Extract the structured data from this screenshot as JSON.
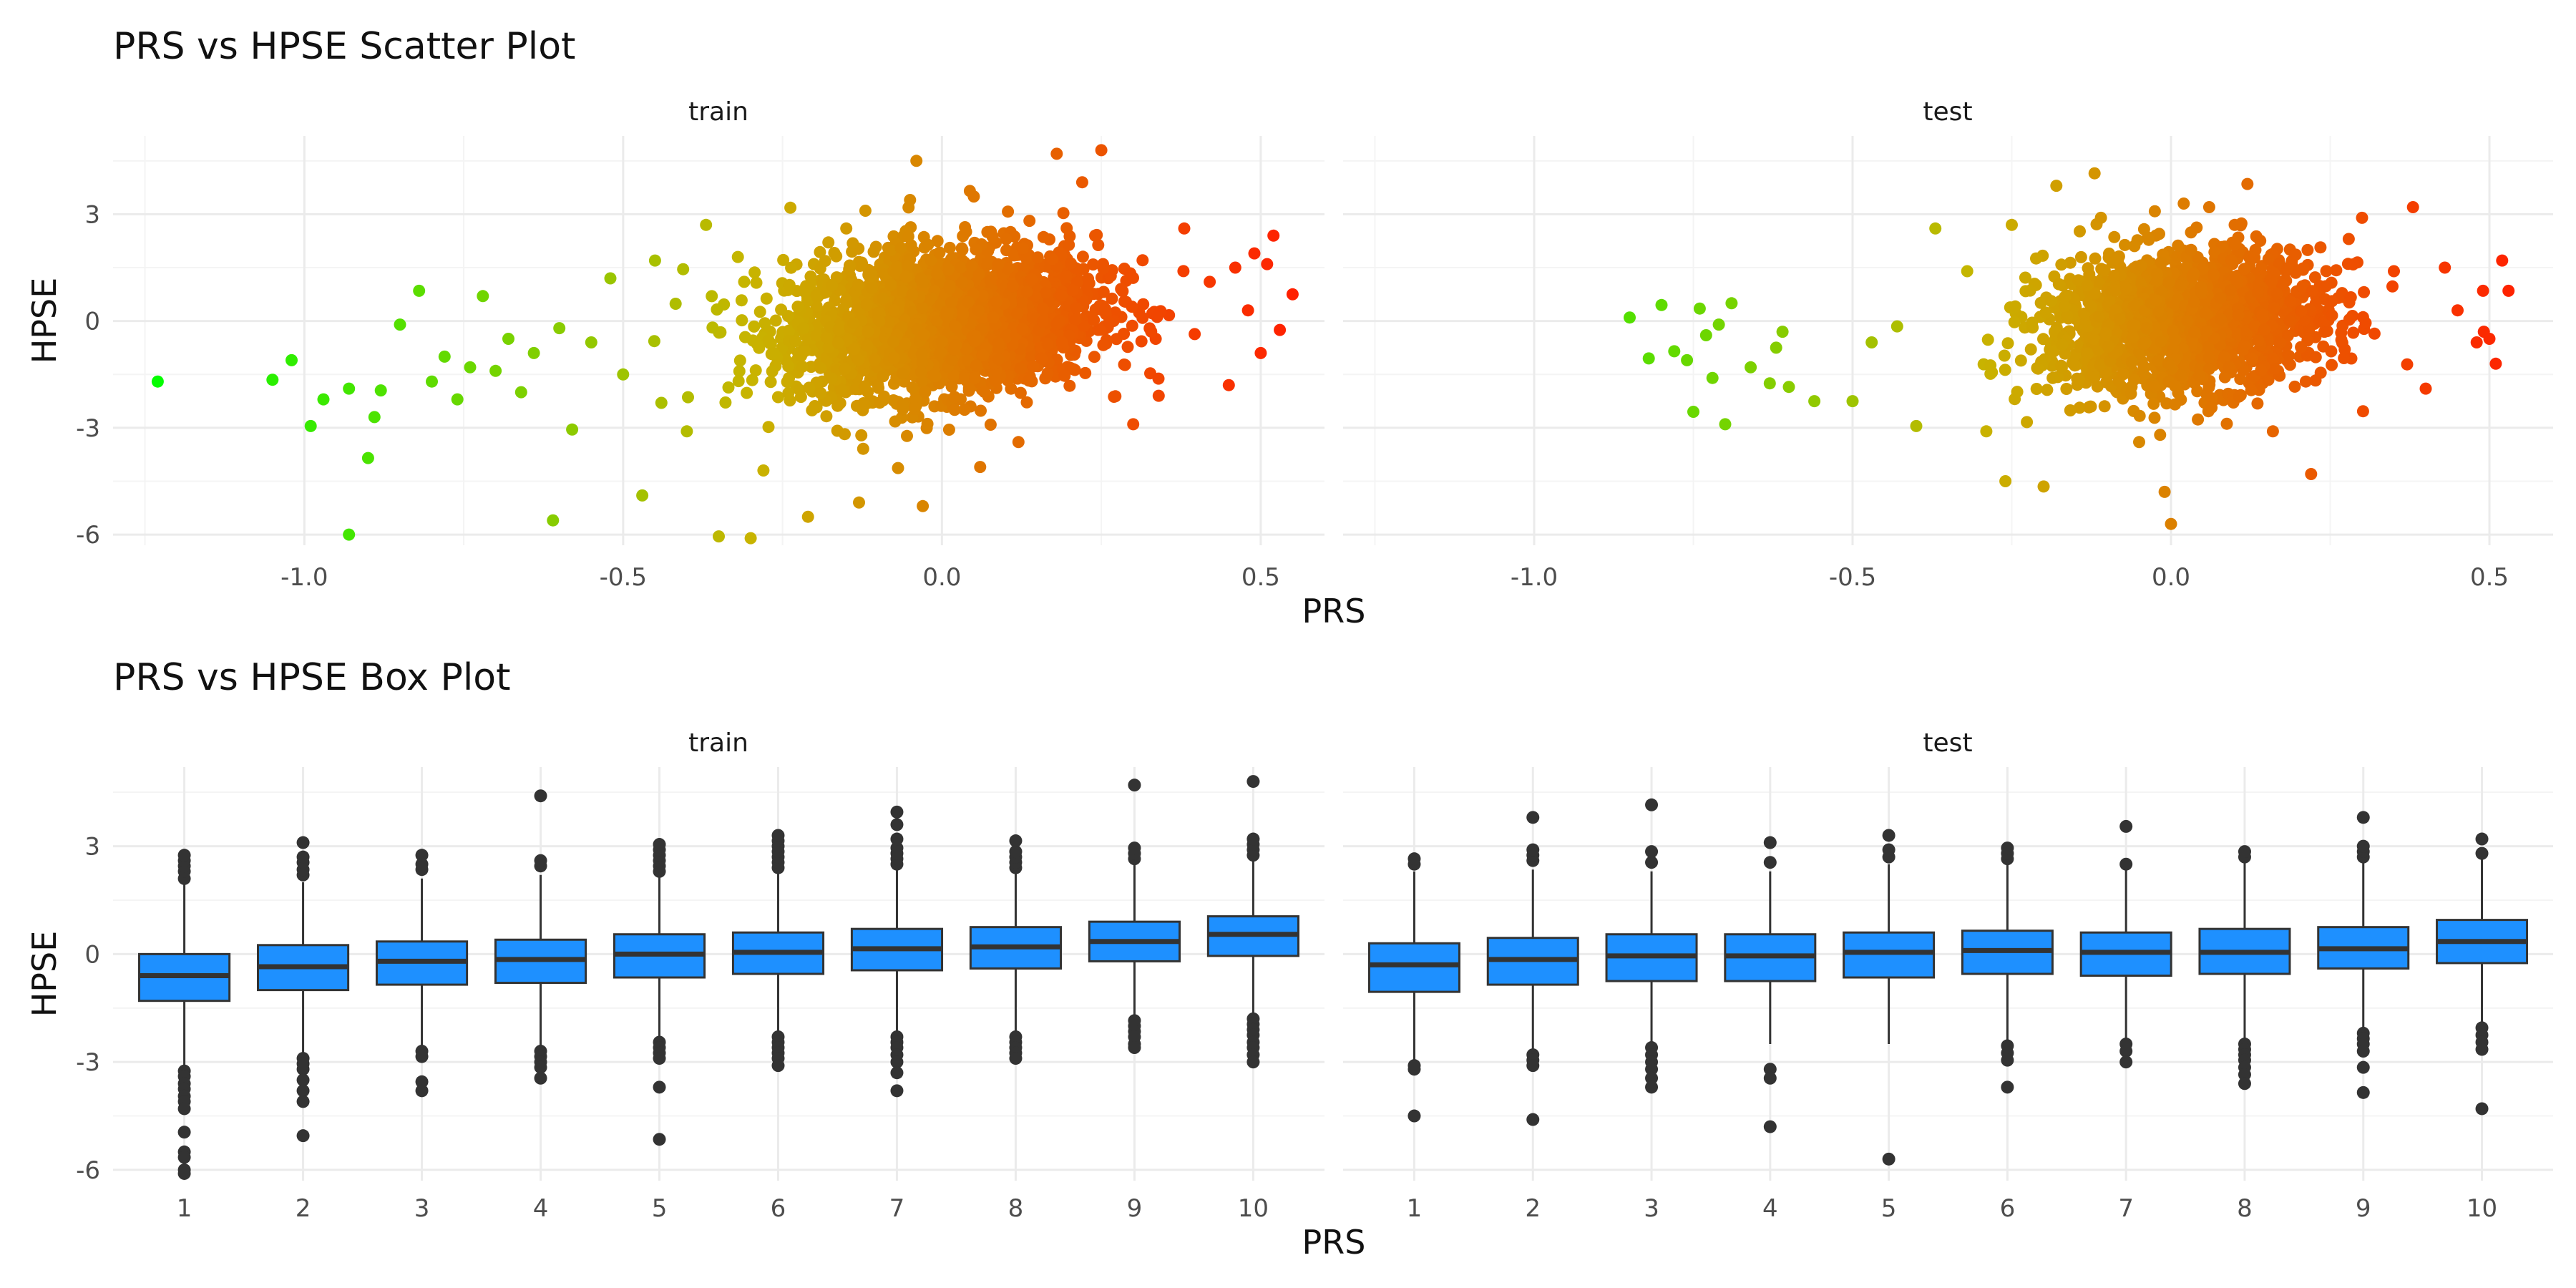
{
  "colors": {
    "background": "#ffffff",
    "grid_major": "#ebebeb",
    "grid_minor": "#f4f4f4",
    "box_fill": "#1e90ff",
    "box_line": "#333333",
    "outlier": "#333333",
    "scatter_low": "#00ff00",
    "scatter_mid": "#c8b400",
    "scatter_high": "#ff2000"
  },
  "chart_data": [
    {
      "type": "scatter",
      "title": "PRS vs HPSE Scatter Plot",
      "xlabel": "PRS",
      "ylabel": "HPSE",
      "xlim": [
        -1.3,
        0.6
      ],
      "ylim": [
        -6.3,
        5.2
      ],
      "x_ticks": [
        -1.0,
        -0.5,
        0.0,
        0.5
      ],
      "x_tick_labels": [
        "-1.0",
        "-0.5",
        "0.0",
        "0.5"
      ],
      "y_ticks": [
        -6,
        -3,
        0,
        3
      ],
      "y_tick_labels": [
        "-6",
        "-3",
        "0",
        "3"
      ],
      "grid": true,
      "legend": "none",
      "color_mapping": "color encodes PRS (green = low, red = high)",
      "panels": [
        {
          "label": "train",
          "dense_core": {
            "x_mean": 0.0,
            "x_sd": 0.12,
            "y_mean": 0.0,
            "y_sd": 1.0,
            "slope": 1.6,
            "n": 2600
          },
          "points": [
            [
              -1.23,
              -1.7
            ],
            [
              -1.05,
              -1.65
            ],
            [
              -1.02,
              -1.1
            ],
            [
              -0.99,
              -2.95
            ],
            [
              -0.97,
              -2.2
            ],
            [
              -0.93,
              -6.0
            ],
            [
              -0.93,
              -1.9
            ],
            [
              -0.9,
              -3.85
            ],
            [
              -0.89,
              -2.7
            ],
            [
              -0.88,
              -1.95
            ],
            [
              -0.85,
              -0.1
            ],
            [
              -0.82,
              0.85
            ],
            [
              -0.8,
              -1.7
            ],
            [
              -0.78,
              -1.0
            ],
            [
              -0.76,
              -2.2
            ],
            [
              -0.74,
              -1.3
            ],
            [
              -0.72,
              0.7
            ],
            [
              -0.7,
              -1.4
            ],
            [
              -0.68,
              -0.5
            ],
            [
              -0.66,
              -2.0
            ],
            [
              -0.64,
              -0.9
            ],
            [
              -0.61,
              -5.6
            ],
            [
              -0.6,
              -0.2
            ],
            [
              -0.58,
              -3.05
            ],
            [
              -0.55,
              -0.6
            ],
            [
              -0.52,
              1.2
            ],
            [
              -0.5,
              -1.5
            ],
            [
              -0.47,
              -4.9
            ],
            [
              -0.45,
              1.7
            ],
            [
              -0.44,
              -2.3
            ],
            [
              -0.4,
              -3.1
            ],
            [
              -0.37,
              2.7
            ],
            [
              -0.35,
              -6.05
            ],
            [
              -0.32,
              1.8
            ],
            [
              -0.3,
              -6.1
            ],
            [
              -0.28,
              -4.2
            ],
            [
              -0.21,
              -5.5
            ],
            [
              -0.15,
              2.6
            ],
            [
              -0.13,
              -5.1
            ],
            [
              -0.12,
              3.1
            ],
            [
              -0.05,
              3.4
            ],
            [
              -0.03,
              -5.2
            ],
            [
              -0.04,
              4.5
            ],
            [
              0.05,
              3.5
            ],
            [
              0.06,
              -4.1
            ],
            [
              0.12,
              -3.4
            ],
            [
              0.18,
              4.7
            ],
            [
              0.22,
              3.9
            ],
            [
              0.25,
              4.8
            ],
            [
              0.3,
              -2.9
            ],
            [
              0.34,
              -2.1
            ],
            [
              0.38,
              2.6
            ],
            [
              0.42,
              1.1
            ],
            [
              0.45,
              -1.8
            ],
            [
              0.46,
              1.5
            ],
            [
              0.48,
              0.3
            ],
            [
              0.49,
              1.9
            ],
            [
              0.5,
              -0.9
            ],
            [
              0.51,
              1.6
            ],
            [
              0.52,
              2.4
            ],
            [
              0.53,
              -0.25
            ],
            [
              0.55,
              0.75
            ]
          ]
        },
        {
          "label": "test",
          "dense_core": {
            "x_mean": 0.02,
            "x_sd": 0.11,
            "y_mean": 0.0,
            "y_sd": 0.95,
            "slope": 1.2,
            "n": 1800
          },
          "points": [
            [
              -0.85,
              0.1
            ],
            [
              -0.82,
              -1.05
            ],
            [
              -0.8,
              0.45
            ],
            [
              -0.78,
              -0.85
            ],
            [
              -0.76,
              -1.1
            ],
            [
              -0.75,
              -2.55
            ],
            [
              -0.74,
              0.35
            ],
            [
              -0.73,
              -0.4
            ],
            [
              -0.72,
              -1.6
            ],
            [
              -0.71,
              -0.1
            ],
            [
              -0.7,
              -2.9
            ],
            [
              -0.69,
              0.5
            ],
            [
              -0.66,
              -1.3
            ],
            [
              -0.63,
              -1.75
            ],
            [
              -0.62,
              -0.75
            ],
            [
              -0.61,
              -0.3
            ],
            [
              -0.6,
              -1.85
            ],
            [
              -0.56,
              -2.25
            ],
            [
              -0.5,
              -2.25
            ],
            [
              -0.47,
              -0.6
            ],
            [
              -0.43,
              -0.15
            ],
            [
              -0.4,
              -2.95
            ],
            [
              -0.37,
              2.6
            ],
            [
              -0.32,
              1.4
            ],
            [
              -0.29,
              -3.1
            ],
            [
              -0.26,
              -4.5
            ],
            [
              -0.25,
              2.7
            ],
            [
              -0.2,
              -4.65
            ],
            [
              -0.18,
              3.8
            ],
            [
              -0.12,
              4.15
            ],
            [
              -0.11,
              2.9
            ],
            [
              -0.05,
              -3.4
            ],
            [
              -0.01,
              -4.8
            ],
            [
              0.0,
              -5.7
            ],
            [
              0.02,
              3.3
            ],
            [
              0.06,
              3.2
            ],
            [
              0.1,
              2.7
            ],
            [
              0.12,
              3.85
            ],
            [
              0.16,
              -3.1
            ],
            [
              0.22,
              -4.3
            ],
            [
              0.3,
              2.9
            ],
            [
              0.35,
              1.4
            ],
            [
              0.38,
              3.2
            ],
            [
              0.4,
              -1.9
            ],
            [
              0.43,
              1.5
            ],
            [
              0.45,
              0.3
            ],
            [
              0.48,
              -0.6
            ],
            [
              0.49,
              0.85
            ],
            [
              0.5,
              -0.5
            ],
            [
              0.51,
              -1.2
            ],
            [
              0.52,
              1.7
            ],
            [
              0.53,
              0.85
            ]
          ]
        }
      ]
    },
    {
      "type": "box",
      "title": "PRS vs HPSE Box Plot",
      "xlabel": "PRS",
      "ylabel": "HPSE",
      "categories": [
        "1",
        "2",
        "3",
        "4",
        "5",
        "6",
        "7",
        "8",
        "9",
        "10"
      ],
      "ylim": [
        -6.3,
        5.2
      ],
      "y_ticks": [
        -6,
        -3,
        0,
        3
      ],
      "y_tick_labels": [
        "-6",
        "-3",
        "0",
        "3"
      ],
      "grid": true,
      "legend": "none",
      "panels": [
        {
          "label": "train",
          "boxes": [
            {
              "q1": -1.3,
              "median": -0.6,
              "q3": 0.0,
              "lo": -3.1,
              "hi": 1.95,
              "outliers": [
                2.1,
                2.3,
                2.45,
                2.6,
                2.75,
                -3.25,
                -3.4,
                -3.6,
                -3.75,
                -3.95,
                -4.1,
                -4.3,
                -4.95,
                -5.5,
                -5.65,
                -6.0,
                -6.1
              ]
            },
            {
              "q1": -1.0,
              "median": -0.35,
              "q3": 0.25,
              "lo": -2.8,
              "hi": 2.0,
              "outliers": [
                2.2,
                2.35,
                2.55,
                2.7,
                3.1,
                -2.9,
                -3.05,
                -3.2,
                -3.5,
                -3.8,
                -4.1,
                -5.05
              ]
            },
            {
              "q1": -0.85,
              "median": -0.2,
              "q3": 0.35,
              "lo": -2.6,
              "hi": 2.1,
              "outliers": [
                2.35,
                2.5,
                2.75,
                -2.7,
                -2.85,
                -3.55,
                -3.8
              ]
            },
            {
              "q1": -0.8,
              "median": -0.15,
              "q3": 0.4,
              "lo": -2.6,
              "hi": 2.2,
              "outliers": [
                2.45,
                2.6,
                4.4,
                -2.7,
                -2.85,
                -3.0,
                -3.15,
                -3.45
              ]
            },
            {
              "q1": -0.65,
              "median": 0.0,
              "q3": 0.55,
              "lo": -2.3,
              "hi": 2.15,
              "outliers": [
                2.3,
                2.45,
                2.6,
                2.75,
                2.9,
                3.05,
                -2.45,
                -2.6,
                -2.75,
                -2.9,
                -3.7,
                -5.15
              ]
            },
            {
              "q1": -0.55,
              "median": 0.05,
              "q3": 0.6,
              "lo": -2.2,
              "hi": 2.3,
              "outliers": [
                2.4,
                2.55,
                2.7,
                2.85,
                3.0,
                3.15,
                3.3,
                -2.3,
                -2.45,
                -2.6,
                -2.75,
                -2.9,
                -3.1
              ]
            },
            {
              "q1": -0.45,
              "median": 0.15,
              "q3": 0.7,
              "lo": -2.2,
              "hi": 2.35,
              "outliers": [
                2.5,
                2.65,
                2.8,
                2.95,
                3.2,
                3.6,
                3.95,
                -2.3,
                -2.45,
                -2.6,
                -2.8,
                -3.0,
                -3.3,
                -3.8
              ]
            },
            {
              "q1": -0.4,
              "median": 0.2,
              "q3": 0.75,
              "lo": -2.2,
              "hi": 2.3,
              "outliers": [
                2.4,
                2.55,
                2.7,
                2.85,
                3.15,
                -2.3,
                -2.45,
                -2.6,
                -2.75,
                -2.9
              ]
            },
            {
              "q1": -0.2,
              "median": 0.35,
              "q3": 0.9,
              "lo": -1.75,
              "hi": 2.55,
              "outliers": [
                2.65,
                2.8,
                2.95,
                4.7,
                -1.85,
                -2.0,
                -2.15,
                -2.3,
                -2.5,
                -2.6
              ]
            },
            {
              "q1": -0.05,
              "median": 0.55,
              "q3": 1.05,
              "lo": -1.7,
              "hi": 2.6,
              "outliers": [
                2.75,
                2.9,
                3.05,
                3.2,
                4.8,
                -1.8,
                -1.95,
                -2.1,
                -2.25,
                -2.45,
                -2.6,
                -2.8,
                -3.0
              ]
            }
          ]
        },
        {
          "label": "test",
          "boxes": [
            {
              "q1": -1.05,
              "median": -0.3,
              "q3": 0.3,
              "lo": -3.0,
              "hi": 2.3,
              "outliers": [
                2.5,
                2.65,
                -3.1,
                -3.2,
                -4.5
              ]
            },
            {
              "q1": -0.85,
              "median": -0.15,
              "q3": 0.45,
              "lo": -2.7,
              "hi": 2.35,
              "outliers": [
                2.6,
                2.75,
                2.9,
                3.8,
                -2.8,
                -2.95,
                -3.1,
                -4.6
              ]
            },
            {
              "q1": -0.75,
              "median": -0.05,
              "q3": 0.55,
              "lo": -2.5,
              "hi": 2.3,
              "outliers": [
                2.55,
                2.85,
                4.15,
                -2.6,
                -2.8,
                -3.0,
                -3.2,
                -3.45,
                -3.7
              ]
            },
            {
              "q1": -0.75,
              "median": -0.05,
              "q3": 0.55,
              "lo": -2.5,
              "hi": 2.3,
              "outliers": [
                2.55,
                3.1,
                -3.2,
                -3.45,
                -4.8
              ]
            },
            {
              "q1": -0.65,
              "median": 0.05,
              "q3": 0.6,
              "lo": -2.5,
              "hi": 2.5,
              "outliers": [
                2.7,
                2.9,
                3.3,
                -5.7
              ]
            },
            {
              "q1": -0.55,
              "median": 0.1,
              "q3": 0.65,
              "lo": -2.4,
              "hi": 2.5,
              "outliers": [
                2.65,
                2.8,
                2.95,
                -2.55,
                -2.75,
                -2.95,
                -3.7
              ]
            },
            {
              "q1": -0.6,
              "median": 0.05,
              "q3": 0.6,
              "lo": -2.4,
              "hi": 2.35,
              "outliers": [
                2.5,
                3.55,
                -2.5,
                -2.7,
                -3.0
              ]
            },
            {
              "q1": -0.55,
              "median": 0.05,
              "q3": 0.7,
              "lo": -2.4,
              "hi": 2.55,
              "outliers": [
                2.7,
                2.85,
                -2.5,
                -2.65,
                -2.8,
                -2.95,
                -3.15,
                -3.35,
                -3.6
              ]
            },
            {
              "q1": -0.4,
              "median": 0.15,
              "q3": 0.75,
              "lo": -2.1,
              "hi": 2.55,
              "outliers": [
                2.7,
                2.85,
                3.0,
                3.8,
                -2.2,
                -2.35,
                -2.5,
                -2.7,
                -3.15,
                -3.85
              ]
            },
            {
              "q1": -0.25,
              "median": 0.35,
              "q3": 0.95,
              "lo": -1.95,
              "hi": 2.65,
              "outliers": [
                2.8,
                3.2,
                -2.05,
                -2.25,
                -2.45,
                -2.65,
                -4.3
              ]
            }
          ]
        }
      ]
    }
  ]
}
